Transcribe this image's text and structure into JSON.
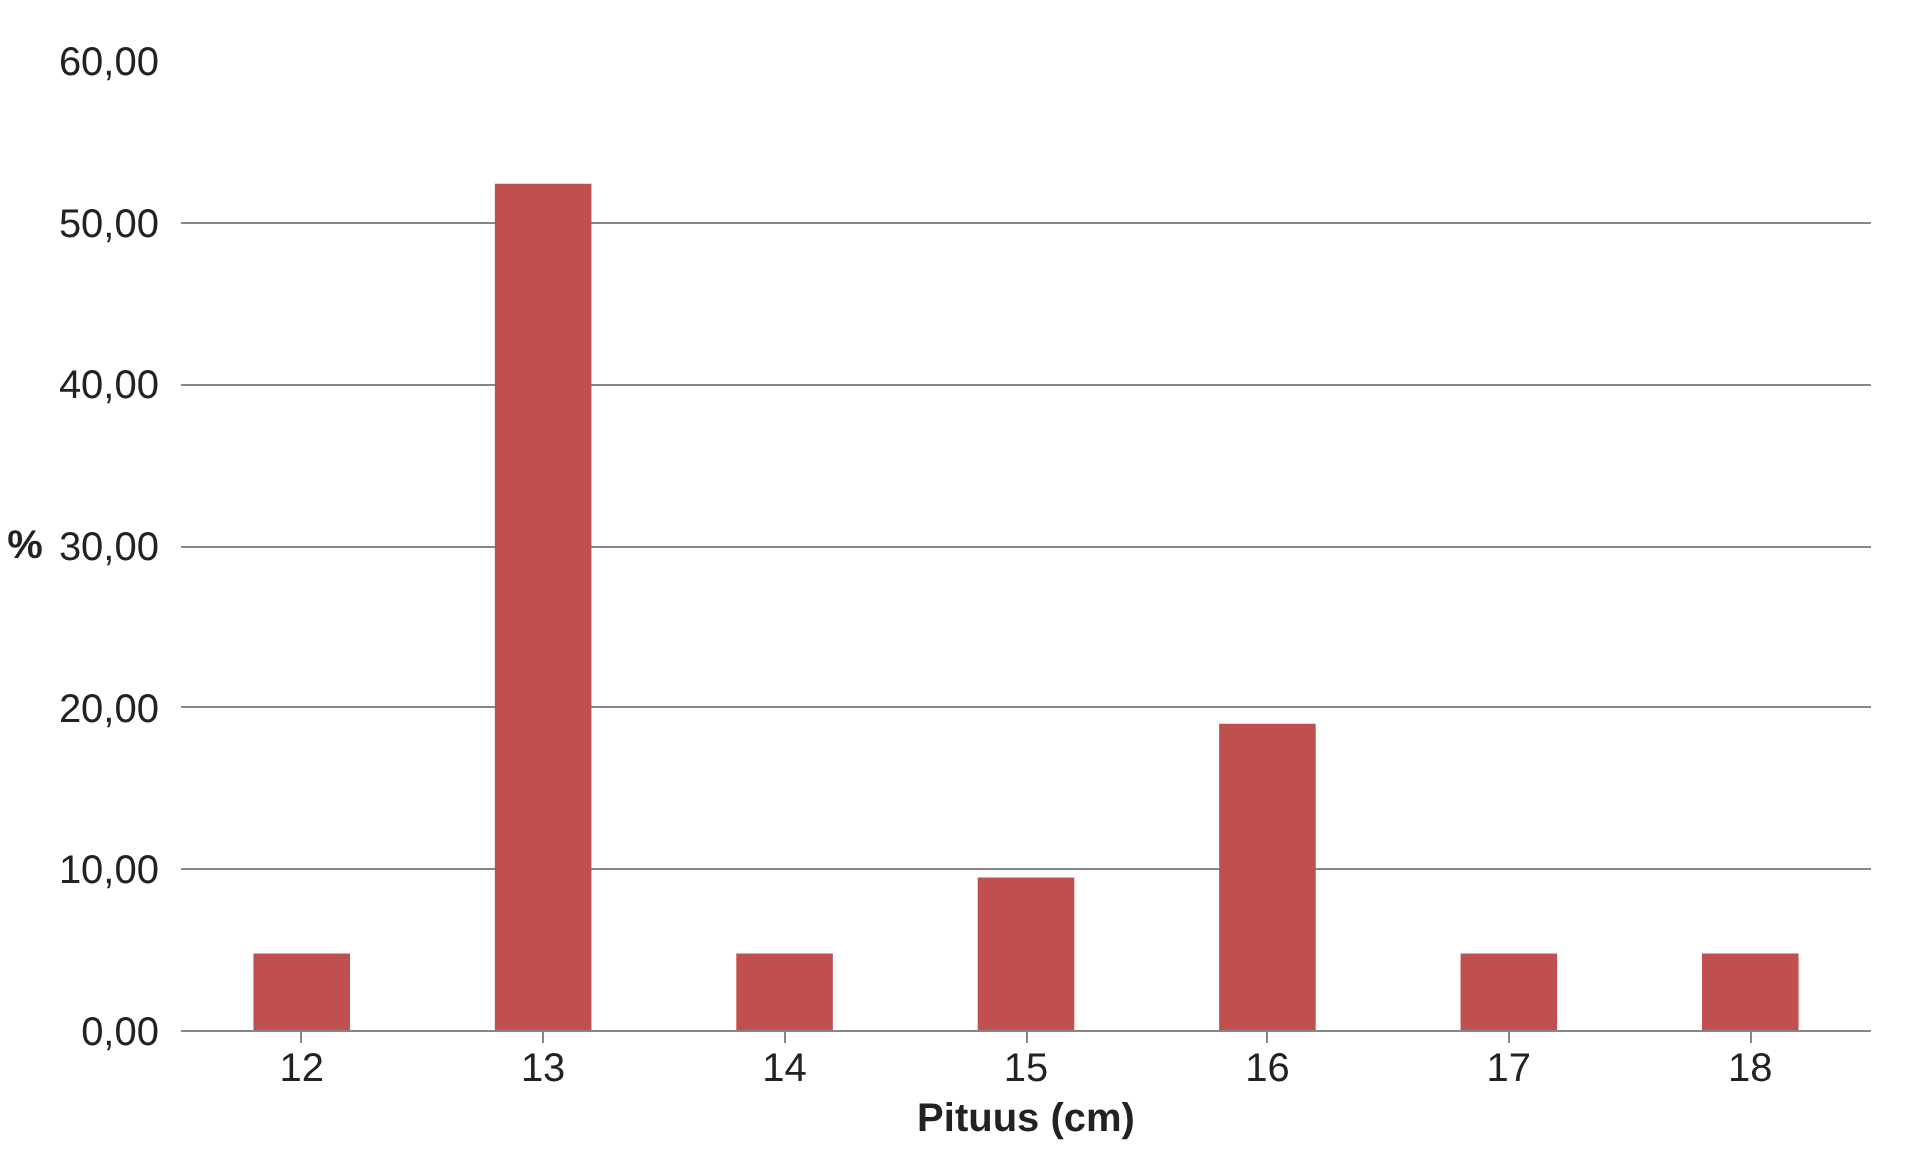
{
  "chart_data": {
    "type": "bar",
    "xlabel": "Pituus (cm)",
    "ylabel": "%",
    "categories": [
      "12",
      "13",
      "14",
      "15",
      "16",
      "17",
      "18"
    ],
    "values": [
      4.8,
      52.4,
      4.8,
      9.5,
      19.0,
      4.8,
      4.8
    ],
    "color": "#c0504d",
    "ylim": [
      0,
      60
    ],
    "yticks": [
      {
        "value": 0,
        "label": "0,00"
      },
      {
        "value": 10,
        "label": "10,00"
      },
      {
        "value": 20,
        "label": "20,00"
      },
      {
        "value": 30,
        "label": "30,00"
      },
      {
        "value": 40,
        "label": "40,00"
      },
      {
        "value": 50,
        "label": "50,00"
      },
      {
        "value": 60,
        "label": "60,00"
      }
    ],
    "grid": "y"
  }
}
